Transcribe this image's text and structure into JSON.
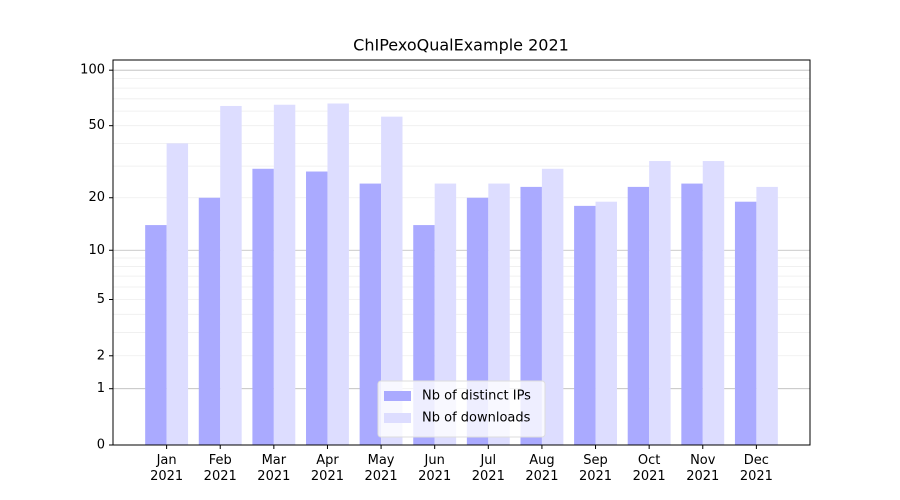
{
  "chart_data": {
    "type": "bar",
    "title": "ChIPexoQualExample 2021",
    "categories": [
      "Jan 2021",
      "Feb 2021",
      "Mar 2021",
      "Apr 2021",
      "May 2021",
      "Jun 2021",
      "Jul 2021",
      "Aug 2021",
      "Sep 2021",
      "Oct 2021",
      "Nov 2021",
      "Dec 2021"
    ],
    "series": [
      {
        "name": "Nb of distinct IPs",
        "color": "#aaaaff",
        "values": [
          14,
          20,
          29,
          28,
          24,
          14,
          20,
          23,
          18,
          23,
          24,
          19
        ]
      },
      {
        "name": "Nb of downloads",
        "color": "#ddddff",
        "values": [
          40,
          64,
          65,
          66,
          56,
          24,
          24,
          29,
          19,
          32,
          32,
          23
        ]
      }
    ],
    "yscale": "symlog",
    "ylim": [
      0,
      113.5
    ],
    "yticks": [
      0,
      1,
      2,
      5,
      10,
      20,
      50,
      100
    ],
    "yminorticks": [
      3,
      4,
      6,
      7,
      8,
      9,
      30,
      40,
      60,
      70,
      80,
      90
    ],
    "grid": true,
    "legend": "lower center"
  }
}
